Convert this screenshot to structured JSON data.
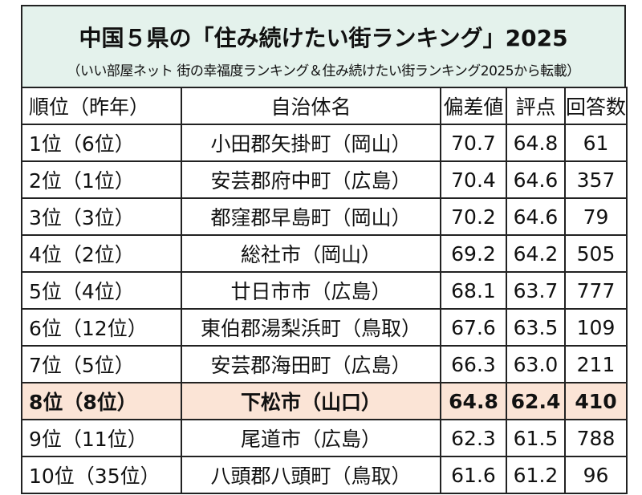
{
  "header": {
    "title": "中国５県の「住み続けたい街ランキング」2025",
    "subtitle": "（いい部屋ネット 街の幸福度ランキング＆住み続けたい街ランキング2025から転載）"
  },
  "table": {
    "columns": [
      "順位（昨年）",
      "自治体名",
      "偏差値",
      "評点",
      "回答数"
    ],
    "highlight_row": 7,
    "rows": [
      [
        "1位（6位）",
        "小田郡矢掛町（岡山）",
        "70.7",
        "64.8",
        "61"
      ],
      [
        "2位（1位）",
        "安芸郡府中町（広島）",
        "70.4",
        "64.6",
        "357"
      ],
      [
        "3位（3位）",
        "都窪郡早島町（岡山）",
        "70.2",
        "64.6",
        "79"
      ],
      [
        "4位（2位）",
        "総社市（岡山）",
        "69.2",
        "64.2",
        "505"
      ],
      [
        "5位（4位）",
        "廿日市市（広島）",
        "68.1",
        "63.7",
        "777"
      ],
      [
        "6位（12位）",
        "東伯郡湯梨浜町（鳥取）",
        "67.6",
        "63.5",
        "109"
      ],
      [
        "7位（5位）",
        "安芸郡海田町（広島）",
        "66.3",
        "63.0",
        "211"
      ],
      [
        "8位（8位）",
        "下松市（山口）",
        "64.8",
        "62.4",
        "410"
      ],
      [
        "9位（11位）",
        "尾道市（広島）",
        "62.3",
        "61.5",
        "788"
      ],
      [
        "10位（35位）",
        "八頭郡八頭町（鳥取）",
        "61.6",
        "61.2",
        "96"
      ]
    ]
  }
}
